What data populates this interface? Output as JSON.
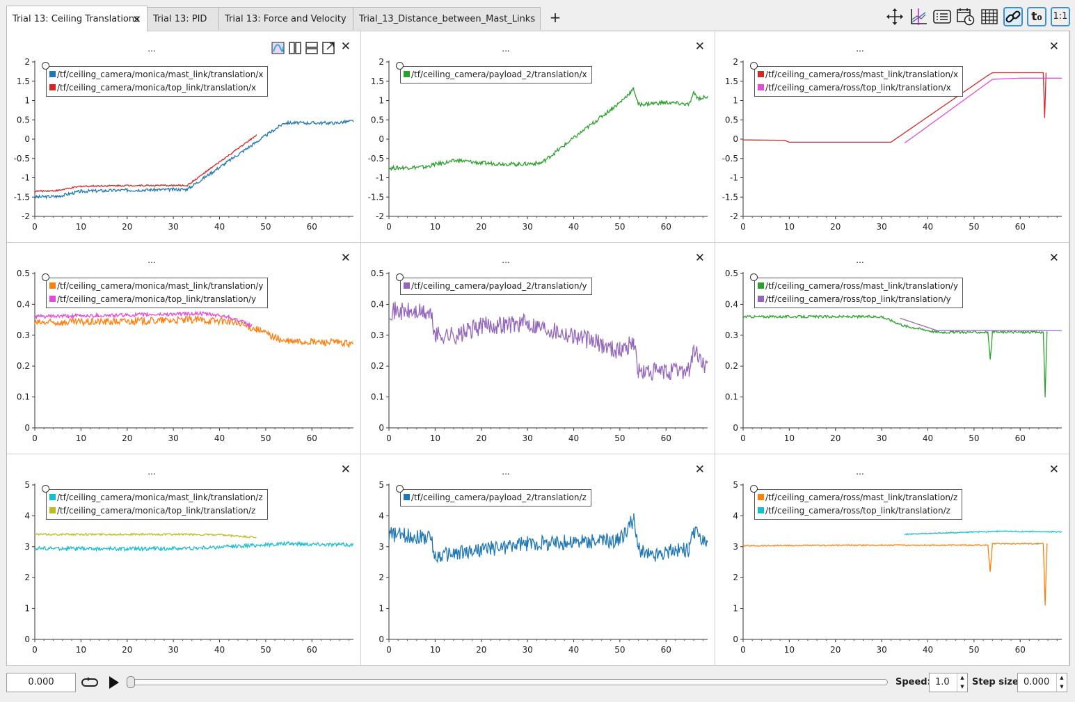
{
  "tabs": [
    {
      "label": "Trial 13: Ceiling Translations",
      "active": true,
      "closable": true
    },
    {
      "label": "Trial 13: PID",
      "active": false
    },
    {
      "label": "Trial 13: Force and Velocity",
      "active": false
    },
    {
      "label": "Trial_13_Distance_between_Mast_Links",
      "active": false
    }
  ],
  "new_tab_label": "+",
  "toolbar": [
    {
      "name": "move-icon",
      "active": false
    },
    {
      "name": "zoom-out-icon",
      "active": false
    },
    {
      "name": "legend-list-icon",
      "active": false
    },
    {
      "name": "calendar-clock-icon",
      "active": false
    },
    {
      "name": "grid-icon",
      "active": false
    },
    {
      "name": "link-icon",
      "active": true
    },
    {
      "name": "time-offset-icon",
      "label": "t₀",
      "active": false
    },
    {
      "name": "aspect-ratio-icon",
      "label": "1:1",
      "active": false
    }
  ],
  "panel_title": "...",
  "close_label": "✕",
  "colors": {
    "blue": "#1f77b4",
    "red": "#d62728",
    "green": "#2ca02c",
    "orange": "#ff7f0e",
    "magenta": "#e74ad8",
    "purple": "#9467bd",
    "cyan": "#17becf",
    "olive": "#bcbd22"
  },
  "panels": [
    {
      "legend": [
        {
          "label": "/tf/ceiling_camera/monica/mast_link/translation/x",
          "color": "#1f77b4"
        },
        {
          "label": "/tf/ceiling_camera/monica/top_link/translation/x",
          "color": "#d62728"
        }
      ],
      "chart_data": {
        "type": "line",
        "ylim": [
          -2,
          2
        ],
        "yticks": [
          "2",
          "1.5",
          "1",
          "0.5",
          "0",
          "-0.5",
          "-1",
          "-1.5",
          "-2"
        ],
        "xlim": [
          0,
          69
        ],
        "xticks": [
          "0",
          "10",
          "20",
          "30",
          "40",
          "50",
          "60"
        ],
        "series": [
          {
            "name": "/tf/ceiling_camera/monica/mast_link/translation/x",
            "color": "#1f77b4",
            "noise": 0.04,
            "points": [
              [
                0,
                -1.5
              ],
              [
                5,
                -1.48
              ],
              [
                10,
                -1.35
              ],
              [
                20,
                -1.32
              ],
              [
                33,
                -1.3
              ],
              [
                54,
                0.42
              ],
              [
                65,
                0.42
              ],
              [
                69,
                0.47
              ]
            ]
          },
          {
            "name": "/tf/ceiling_camera/monica/top_link/translation/x",
            "color": "#d62728",
            "noise": 0.02,
            "points": [
              [
                0,
                -1.35
              ],
              [
                5,
                -1.33
              ],
              [
                10,
                -1.22
              ],
              [
                20,
                -1.2
              ],
              [
                33,
                -1.2
              ],
              [
                48,
                0.1
              ]
            ]
          }
        ]
      }
    },
    {
      "legend": [
        {
          "label": "/tf/ceiling_camera/payload_2/translation/x",
          "color": "#2ca02c"
        }
      ],
      "chart_data": {
        "type": "line",
        "ylim": [
          -2,
          2
        ],
        "yticks": [
          "2",
          "1.5",
          "1",
          "0.5",
          "0",
          "-0.5",
          "-1",
          "-1.5",
          "-2"
        ],
        "xlim": [
          0,
          69
        ],
        "xticks": [
          "0",
          "10",
          "20",
          "30",
          "40",
          "50",
          "60"
        ],
        "series": [
          {
            "name": "/tf/ceiling_camera/payload_2/translation/x",
            "color": "#2ca02c",
            "noise": 0.05,
            "points": [
              [
                0,
                -0.75
              ],
              [
                8,
                -0.72
              ],
              [
                10,
                -0.65
              ],
              [
                15,
                -0.55
              ],
              [
                20,
                -0.62
              ],
              [
                28,
                -0.65
              ],
              [
                33,
                -0.62
              ],
              [
                50,
                0.95
              ],
              [
                53,
                1.3
              ],
              [
                54,
                0.9
              ],
              [
                60,
                0.95
              ],
              [
                65,
                0.9
              ],
              [
                66,
                1.2
              ],
              [
                67,
                1.05
              ],
              [
                69,
                1.1
              ]
            ]
          }
        ]
      }
    },
    {
      "legend": [
        {
          "label": "/tf/ceiling_camera/ross/mast_link/translation/x",
          "color": "#d62728"
        },
        {
          "label": "/tf/ceiling_camera/ross/top_link/translation/x",
          "color": "#e74ad8"
        }
      ],
      "chart_data": {
        "type": "line",
        "ylim": [
          -2,
          2
        ],
        "yticks": [
          "2",
          "1.5",
          "1",
          "0.5",
          "0",
          "-0.5",
          "-1",
          "-1.5",
          "-2"
        ],
        "xlim": [
          0,
          69
        ],
        "xticks": [
          "0",
          "10",
          "20",
          "30",
          "40",
          "50",
          "60"
        ],
        "series": [
          {
            "name": "/tf/ceiling_camera/ross/mast_link/translation/x",
            "color": "#d62728",
            "noise": 0.0,
            "points": [
              [
                0,
                -0.02
              ],
              [
                9,
                -0.03
              ],
              [
                10,
                -0.08
              ],
              [
                32,
                -0.08
              ],
              [
                53,
                1.65
              ],
              [
                54,
                1.72
              ],
              [
                65,
                1.72
              ],
              [
                65.3,
                0.55
              ],
              [
                65.6,
                1.72
              ]
            ]
          },
          {
            "name": "/tf/ceiling_camera/ross/top_link/translation/x",
            "color": "#e74ad8",
            "noise": 0.0,
            "points": [
              [
                35,
                -0.1
              ],
              [
                54,
                1.55
              ],
              [
                60,
                1.58
              ],
              [
                69,
                1.58
              ]
            ]
          }
        ]
      }
    },
    {
      "legend": [
        {
          "label": "/tf/ceiling_camera/monica/mast_link/translation/y",
          "color": "#ff7f0e"
        },
        {
          "label": "/tf/ceiling_camera/monica/top_link/translation/y",
          "color": "#e74ad8"
        }
      ],
      "chart_data": {
        "type": "line",
        "ylim": [
          0,
          0.5
        ],
        "yticks": [
          "0.5",
          "0.4",
          "0.3",
          "0.2",
          "0.1",
          "0"
        ],
        "xlim": [
          0,
          69
        ],
        "xticks": [
          "0",
          "10",
          "20",
          "30",
          "40",
          "50",
          "60"
        ],
        "series": [
          {
            "name": "/tf/ceiling_camera/monica/mast_link/translation/y",
            "color": "#ff7f0e",
            "noise": 0.012,
            "points": [
              [
                0,
                0.34
              ],
              [
                20,
                0.345
              ],
              [
                35,
                0.35
              ],
              [
                42,
                0.345
              ],
              [
                48,
                0.32
              ],
              [
                54,
                0.28
              ],
              [
                65,
                0.277
              ],
              [
                69,
                0.27
              ]
            ]
          },
          {
            "name": "/tf/ceiling_camera/monica/top_link/translation/y",
            "color": "#e74ad8",
            "noise": 0.006,
            "points": [
              [
                0,
                0.36
              ],
              [
                20,
                0.365
              ],
              [
                36,
                0.37
              ],
              [
                42,
                0.36
              ],
              [
                47,
                0.33
              ]
            ]
          }
        ]
      }
    },
    {
      "legend": [
        {
          "label": "/tf/ceiling_camera/payload_2/translation/y",
          "color": "#9467bd"
        }
      ],
      "chart_data": {
        "type": "line",
        "ylim": [
          0,
          0.5
        ],
        "yticks": [
          "0.5",
          "0.4",
          "0.3",
          "0.2",
          "0.1",
          "0"
        ],
        "xlim": [
          0,
          69
        ],
        "xticks": [
          "0",
          "10",
          "20",
          "30",
          "40",
          "50",
          "60"
        ],
        "series": [
          {
            "name": "/tf/ceiling_camera/payload_2/translation/y",
            "color": "#9467bd",
            "noise": 0.03,
            "points": [
              [
                0,
                0.38
              ],
              [
                9,
                0.37
              ],
              [
                10,
                0.3
              ],
              [
                15,
                0.3
              ],
              [
                20,
                0.33
              ],
              [
                30,
                0.34
              ],
              [
                40,
                0.3
              ],
              [
                50,
                0.25
              ],
              [
                53,
                0.28
              ],
              [
                54,
                0.18
              ],
              [
                60,
                0.18
              ],
              [
                65,
                0.19
              ],
              [
                66,
                0.25
              ],
              [
                69,
                0.19
              ]
            ]
          }
        ]
      }
    },
    {
      "legend": [
        {
          "label": "/tf/ceiling_camera/ross/mast_link/translation/y",
          "color": "#2ca02c"
        },
        {
          "label": "/tf/ceiling_camera/ross/top_link/translation/y",
          "color": "#9467bd"
        }
      ],
      "chart_data": {
        "type": "line",
        "ylim": [
          0,
          0.5
        ],
        "yticks": [
          "0.5",
          "0.4",
          "0.3",
          "0.2",
          "0.1",
          "0"
        ],
        "xlim": [
          0,
          69
        ],
        "xticks": [
          "0",
          "10",
          "20",
          "30",
          "40",
          "50",
          "60"
        ],
        "series": [
          {
            "name": "/tf/ceiling_camera/ross/mast_link/translation/y",
            "color": "#2ca02c",
            "noise": 0.004,
            "points": [
              [
                0,
                0.36
              ],
              [
                30,
                0.36
              ],
              [
                35,
                0.33
              ],
              [
                42,
                0.31
              ],
              [
                53,
                0.31
              ],
              [
                53.5,
                0.22
              ],
              [
                54,
                0.31
              ],
              [
                65,
                0.31
              ],
              [
                65.4,
                0.1
              ],
              [
                65.8,
                0.31
              ]
            ]
          },
          {
            "name": "/tf/ceiling_camera/ross/top_link/translation/y",
            "color": "#9467bd",
            "noise": 0.0,
            "points": [
              [
                34,
                0.355
              ],
              [
                42,
                0.315
              ],
              [
                69,
                0.315
              ]
            ]
          }
        ]
      }
    },
    {
      "legend": [
        {
          "label": "/tf/ceiling_camera/monica/mast_link/translation/z",
          "color": "#17becf"
        },
        {
          "label": "/tf/ceiling_camera/monica/top_link/translation/z",
          "color": "#bcbd22"
        }
      ],
      "chart_data": {
        "type": "line",
        "ylim": [
          0,
          5
        ],
        "yticks": [
          "5",
          "4",
          "3",
          "2",
          "1",
          "0"
        ],
        "xlim": [
          0,
          69
        ],
        "xticks": [
          "0",
          "10",
          "20",
          "30",
          "40",
          "50",
          "60"
        ],
        "series": [
          {
            "name": "/tf/ceiling_camera/monica/mast_link/translation/z",
            "color": "#17becf",
            "noise": 0.06,
            "points": [
              [
                0,
                2.95
              ],
              [
                20,
                2.93
              ],
              [
                35,
                2.95
              ],
              [
                48,
                3.05
              ],
              [
                55,
                3.1
              ],
              [
                69,
                3.06
              ]
            ]
          },
          {
            "name": "/tf/ceiling_camera/monica/top_link/translation/z",
            "color": "#bcbd22",
            "noise": 0.03,
            "points": [
              [
                0,
                3.4
              ],
              [
                32,
                3.4
              ],
              [
                40,
                3.38
              ],
              [
                48,
                3.3
              ]
            ]
          }
        ]
      }
    },
    {
      "legend": [
        {
          "label": "/tf/ceiling_camera/payload_2/translation/z",
          "color": "#1f77b4"
        }
      ],
      "chart_data": {
        "type": "line",
        "ylim": [
          0,
          5
        ],
        "yticks": [
          "5",
          "4",
          "3",
          "2",
          "1",
          "0"
        ],
        "xlim": [
          0,
          69
        ],
        "xticks": [
          "0",
          "10",
          "20",
          "30",
          "40",
          "50",
          "60"
        ],
        "series": [
          {
            "name": "/tf/ceiling_camera/payload_2/translation/z",
            "color": "#1f77b4",
            "noise": 0.25,
            "points": [
              [
                0,
                3.4
              ],
              [
                9,
                3.3
              ],
              [
                10,
                2.7
              ],
              [
                15,
                2.8
              ],
              [
                20,
                2.9
              ],
              [
                30,
                3.1
              ],
              [
                40,
                3.15
              ],
              [
                50,
                3.2
              ],
              [
                53,
                3.9
              ],
              [
                54,
                2.9
              ],
              [
                57,
                2.7
              ],
              [
                62,
                2.9
              ],
              [
                65,
                2.9
              ],
              [
                66,
                3.5
              ],
              [
                69,
                3.1
              ]
            ]
          }
        ]
      }
    },
    {
      "legend": [
        {
          "label": "/tf/ceiling_camera/ross/mast_link/translation/z",
          "color": "#ff7f0e"
        },
        {
          "label": "/tf/ceiling_camera/ross/top_link/translation/z",
          "color": "#17becf"
        }
      ],
      "chart_data": {
        "type": "line",
        "ylim": [
          0,
          5
        ],
        "yticks": [
          "5",
          "4",
          "3",
          "2",
          "1",
          "0"
        ],
        "xlim": [
          0,
          69
        ],
        "xticks": [
          "0",
          "10",
          "20",
          "30",
          "40",
          "50",
          "60"
        ],
        "series": [
          {
            "name": "/tf/ceiling_camera/ross/mast_link/translation/z",
            "color": "#ff7f0e",
            "noise": 0.02,
            "points": [
              [
                0,
                3.03
              ],
              [
                30,
                3.05
              ],
              [
                53,
                3.05
              ],
              [
                53.5,
                2.2
              ],
              [
                54,
                3.1
              ],
              [
                65,
                3.1
              ],
              [
                65.4,
                1.1
              ],
              [
                65.8,
                3.1
              ]
            ]
          },
          {
            "name": "/tf/ceiling_camera/ross/top_link/translation/z",
            "color": "#17becf",
            "noise": 0.02,
            "points": [
              [
                35,
                3.4
              ],
              [
                45,
                3.45
              ],
              [
                55,
                3.5
              ],
              [
                69,
                3.48
              ]
            ]
          }
        ]
      }
    }
  ],
  "bottom": {
    "time_value": "0.000",
    "speed_label": "Speed:",
    "speed_value": "1.0",
    "step_label": "Step size:",
    "step_value": "0.000",
    "slider_progress": 0.0
  }
}
